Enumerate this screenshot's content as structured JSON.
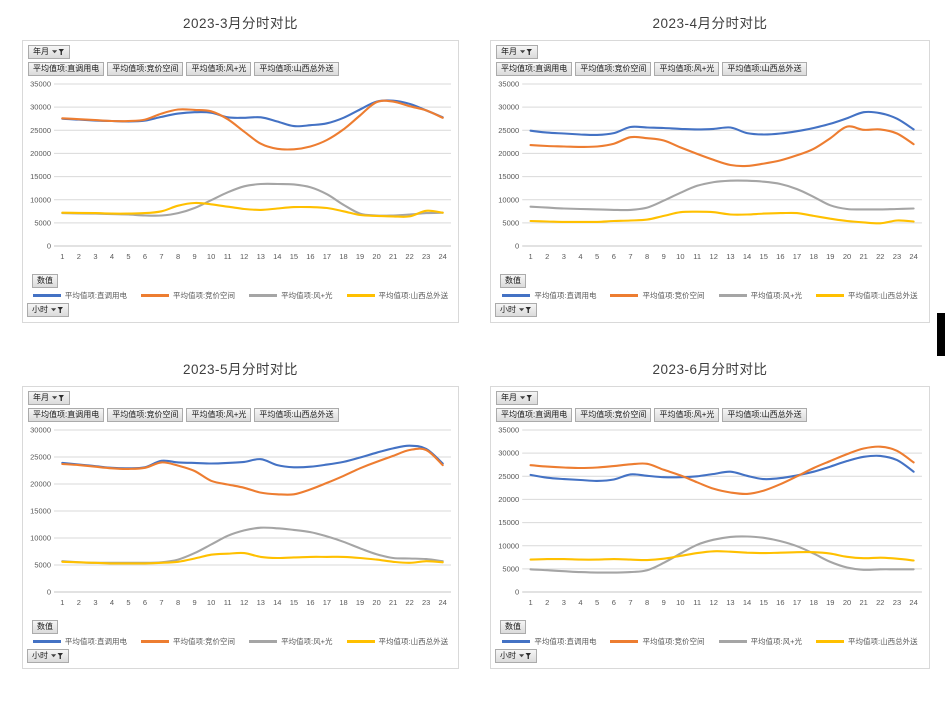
{
  "filter_buttons": {
    "field": "年月",
    "values": "数值",
    "axis": "小时"
  },
  "series_meta": [
    {
      "label": "平均值项:直调用电",
      "color": "#4472C4"
    },
    {
      "label": "平均值项:竞价空间",
      "color": "#ED7D31"
    },
    {
      "label": "平均值项:风+光",
      "color": "#A5A5A5"
    },
    {
      "label": "平均值项:山西总外送",
      "color": "#FFC000"
    }
  ],
  "colors": {
    "grid": "#d9d9d9",
    "axis_line": "#c6c6c6",
    "axis_text": "#595959",
    "title_text": "#3f3f3f"
  },
  "hours": [
    1,
    2,
    3,
    4,
    5,
    6,
    7,
    8,
    9,
    10,
    11,
    12,
    13,
    14,
    15,
    16,
    17,
    18,
    19,
    20,
    21,
    22,
    23,
    24
  ],
  "chart_data": [
    {
      "type": "line",
      "title": "2023-3月分时对比",
      "xlabel": "小时",
      "ylim": [
        0,
        35000
      ],
      "yticks": [
        0,
        5000,
        10000,
        15000,
        20000,
        25000,
        30000,
        35000
      ],
      "x": [
        1,
        2,
        3,
        4,
        5,
        6,
        7,
        8,
        9,
        10,
        11,
        12,
        13,
        14,
        15,
        16,
        17,
        18,
        19,
        20,
        21,
        22,
        23,
        24
      ],
      "series": [
        {
          "name": "平均值项:直调用电",
          "values": [
            27500,
            27300,
            27100,
            27000,
            26900,
            27100,
            27900,
            28600,
            28900,
            28800,
            27800,
            27700,
            27800,
            26900,
            25900,
            26100,
            26500,
            27700,
            29500,
            31200,
            31400,
            30700,
            29300,
            27800
          ]
        },
        {
          "name": "平均值项:竞价空间",
          "values": [
            27600,
            27400,
            27200,
            27000,
            27000,
            27300,
            28600,
            29500,
            29400,
            29100,
            27400,
            24700,
            22100,
            21000,
            20900,
            21500,
            22900,
            25200,
            28200,
            31100,
            31200,
            30200,
            29300,
            27700
          ]
        },
        {
          "name": "平均值项:风+光",
          "values": [
            7100,
            7050,
            7000,
            6900,
            6800,
            6600,
            6600,
            7100,
            8200,
            9900,
            11600,
            12900,
            13400,
            13400,
            13300,
            12700,
            11200,
            8900,
            7000,
            6600,
            6600,
            6800,
            7100,
            7200
          ]
        },
        {
          "name": "平均值项:山西总外送",
          "values": [
            7200,
            7150,
            7100,
            7000,
            7000,
            7100,
            7500,
            8700,
            9300,
            9000,
            8500,
            8000,
            7800,
            8100,
            8400,
            8400,
            8200,
            7500,
            6700,
            6500,
            6400,
            6400,
            7600,
            7200
          ]
        }
      ]
    },
    {
      "type": "line",
      "title": "2023-4月分时对比",
      "xlabel": "小时",
      "ylim": [
        0,
        35000
      ],
      "yticks": [
        0,
        5000,
        10000,
        15000,
        20000,
        25000,
        30000,
        35000
      ],
      "x": [
        1,
        2,
        3,
        4,
        5,
        6,
        7,
        8,
        9,
        10,
        11,
        12,
        13,
        14,
        15,
        16,
        17,
        18,
        19,
        20,
        21,
        22,
        23,
        24
      ],
      "series": [
        {
          "name": "平均值项:直调用电",
          "values": [
            24900,
            24500,
            24300,
            24100,
            24000,
            24400,
            25700,
            25600,
            25500,
            25300,
            25200,
            25300,
            25600,
            24400,
            24100,
            24300,
            24800,
            25500,
            26400,
            27600,
            28900,
            28700,
            27500,
            25200
          ]
        },
        {
          "name": "平均值项:竞价空间",
          "values": [
            21800,
            21600,
            21500,
            21400,
            21500,
            22100,
            23500,
            23300,
            22800,
            21300,
            19900,
            18600,
            17500,
            17300,
            17800,
            18500,
            19600,
            21000,
            23300,
            25800,
            25100,
            25200,
            24300,
            22000
          ]
        },
        {
          "name": "平均值项:风+光",
          "values": [
            8500,
            8300,
            8100,
            8000,
            7900,
            7800,
            7800,
            8300,
            9800,
            11500,
            13000,
            13800,
            14100,
            14100,
            13900,
            13400,
            12300,
            10600,
            8800,
            8000,
            7900,
            7900,
            8000,
            8100
          ]
        },
        {
          "name": "平均值项:山西总外送",
          "values": [
            5400,
            5300,
            5200,
            5200,
            5200,
            5400,
            5500,
            5700,
            6500,
            7300,
            7400,
            7300,
            6800,
            6800,
            7000,
            7100,
            7100,
            6500,
            5900,
            5400,
            5100,
            4900,
            5500,
            5300
          ]
        }
      ]
    },
    {
      "type": "line",
      "title": "2023-5月分时对比",
      "xlabel": "小时",
      "ylim": [
        0,
        30000
      ],
      "yticks": [
        0,
        5000,
        10000,
        15000,
        20000,
        25000,
        30000
      ],
      "x": [
        1,
        2,
        3,
        4,
        5,
        6,
        7,
        8,
        9,
        10,
        11,
        12,
        13,
        14,
        15,
        16,
        17,
        18,
        19,
        20,
        21,
        22,
        23,
        24
      ],
      "series": [
        {
          "name": "平均值项:直调用电",
          "values": [
            23900,
            23600,
            23300,
            23000,
            22900,
            23100,
            24300,
            24000,
            23900,
            23800,
            23900,
            24100,
            24600,
            23500,
            23100,
            23200,
            23600,
            24100,
            24900,
            25800,
            26600,
            27100,
            26500,
            23800
          ]
        },
        {
          "name": "平均值项:竞价空间",
          "values": [
            23700,
            23500,
            23200,
            22900,
            22800,
            23000,
            24000,
            23400,
            22400,
            20600,
            19900,
            19300,
            18400,
            18100,
            18100,
            19000,
            20200,
            21500,
            22900,
            24100,
            25200,
            26300,
            26300,
            23500
          ]
        },
        {
          "name": "平均值项:风+光",
          "values": [
            5700,
            5500,
            5400,
            5400,
            5400,
            5400,
            5500,
            6000,
            7200,
            8800,
            10400,
            11400,
            11900,
            11800,
            11500,
            11100,
            10300,
            9300,
            8100,
            7000,
            6300,
            6200,
            6100,
            5700
          ]
        },
        {
          "name": "平均值项:山西总外送",
          "values": [
            5600,
            5500,
            5400,
            5300,
            5300,
            5300,
            5400,
            5600,
            6200,
            6900,
            7100,
            7200,
            6500,
            6300,
            6400,
            6500,
            6500,
            6500,
            6300,
            6000,
            5600,
            5400,
            5700,
            5500
          ]
        }
      ]
    },
    {
      "type": "line",
      "title": "2023-6月分时对比",
      "xlabel": "小时",
      "ylim": [
        0,
        35000
      ],
      "yticks": [
        0,
        5000,
        10000,
        15000,
        20000,
        25000,
        30000,
        35000
      ],
      "x": [
        1,
        2,
        3,
        4,
        5,
        6,
        7,
        8,
        9,
        10,
        11,
        12,
        13,
        14,
        15,
        16,
        17,
        18,
        19,
        20,
        21,
        22,
        23,
        24
      ],
      "series": [
        {
          "name": "平均值项:直调用电",
          "values": [
            25300,
            24700,
            24400,
            24200,
            24000,
            24300,
            25400,
            25100,
            24800,
            24800,
            25000,
            25500,
            26000,
            25100,
            24400,
            24600,
            25200,
            26000,
            27100,
            28300,
            29200,
            29400,
            28500,
            26000
          ]
        },
        {
          "name": "平均值项:竞价空间",
          "values": [
            27400,
            27100,
            26900,
            26800,
            26900,
            27200,
            27600,
            27700,
            26400,
            25200,
            23700,
            22300,
            21500,
            21200,
            21900,
            23300,
            25000,
            26800,
            28300,
            29800,
            31000,
            31400,
            30500,
            28000
          ]
        },
        {
          "name": "平均值项:风+光",
          "values": [
            4900,
            4700,
            4500,
            4300,
            4200,
            4200,
            4300,
            4700,
            6300,
            8300,
            10200,
            11300,
            11900,
            12000,
            11700,
            11000,
            9900,
            8300,
            6500,
            5300,
            4800,
            4900,
            4900,
            4900
          ]
        },
        {
          "name": "平均值项:山西总外送",
          "values": [
            7000,
            7100,
            7100,
            7000,
            7000,
            7100,
            7000,
            6900,
            7200,
            7800,
            8400,
            8800,
            8700,
            8500,
            8400,
            8500,
            8600,
            8600,
            8300,
            7600,
            7300,
            7400,
            7200,
            6800
          ]
        }
      ]
    }
  ]
}
